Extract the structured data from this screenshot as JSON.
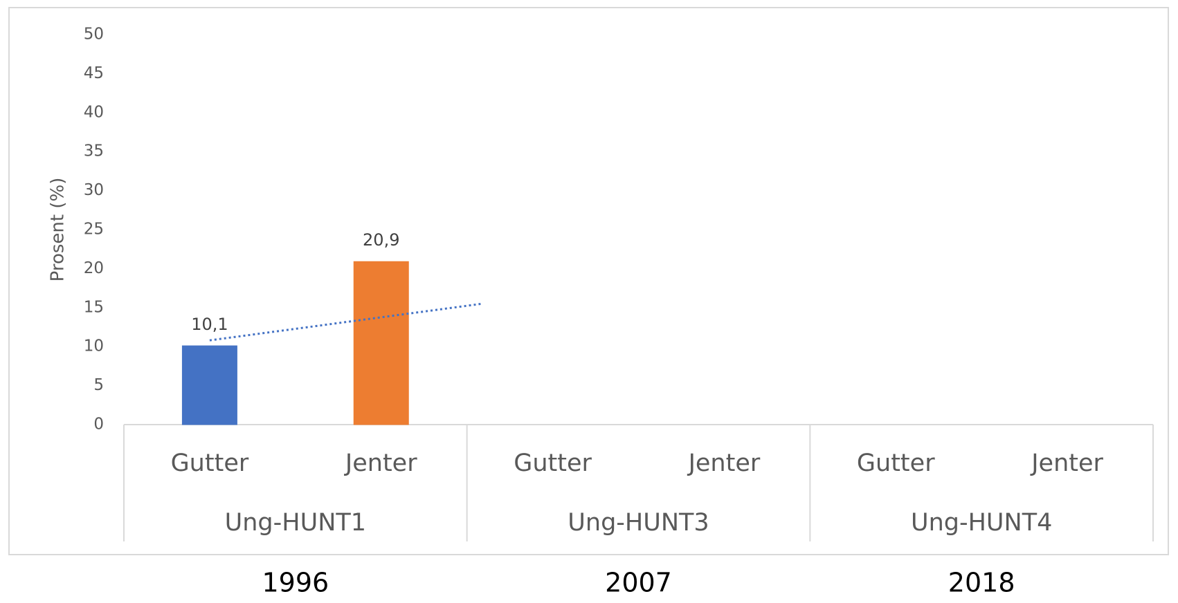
{
  "chart_data": {
    "type": "bar",
    "y_label": "Prosent (%)",
    "categories": [
      "Gutter",
      "Jenter",
      "Gutter",
      "Jenter",
      "Gutter",
      "Jenter"
    ],
    "groups": [
      "Ung-HUNT1",
      "Ung-HUNT3",
      "Ung-HUNT4"
    ],
    "years": [
      "1996",
      "2007",
      "2018"
    ],
    "values": [
      10.1,
      20.9,
      0,
      0,
      0,
      0
    ],
    "value_labels": [
      "10,1",
      "20,9",
      null,
      null,
      null,
      null
    ],
    "colors": [
      "#4472c4",
      "#ed7d31",
      "#4472c4",
      "#ed7d31",
      "#4472c4",
      "#ed7d31"
    ],
    "trendline": {
      "x": [
        0,
        1.59
      ],
      "values": [
        10.8,
        15.5
      ],
      "color": "#4472c4"
    },
    "ylim": [
      0,
      50
    ],
    "yticks": [
      0,
      5,
      10,
      15,
      20,
      25,
      30,
      35,
      40,
      45,
      50
    ],
    "grid": false
  }
}
